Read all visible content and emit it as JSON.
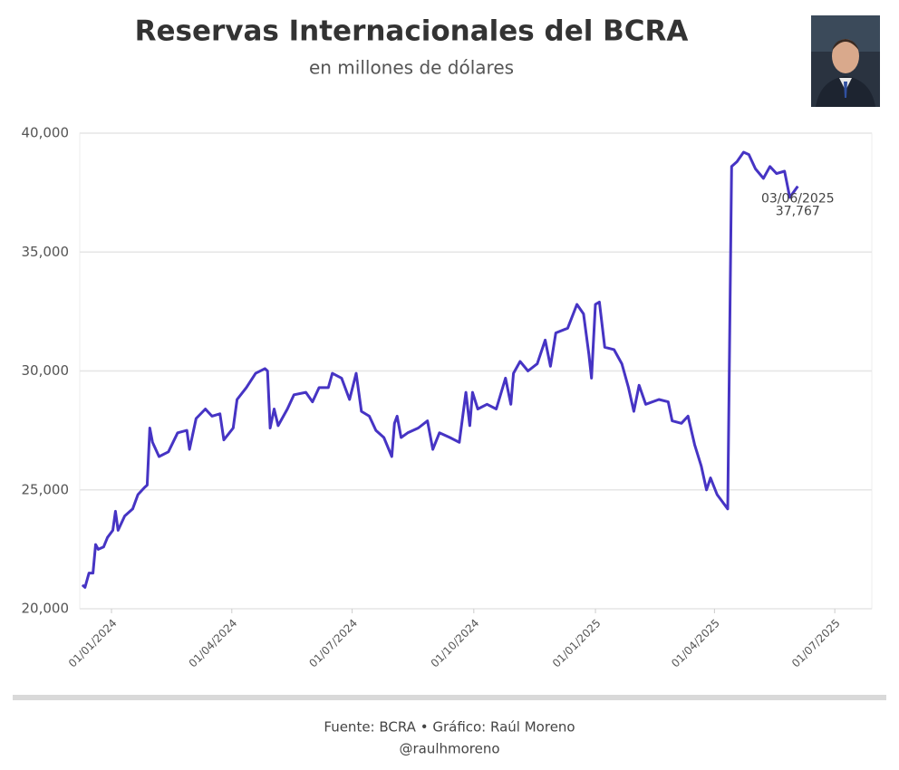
{
  "chart_data": {
    "type": "line",
    "title": "Reservas Internacionales del BCRA",
    "subtitle": "en millones de dólares",
    "source": "Fuente: BCRA • Gráfico: Raúl Moreno",
    "handle": "@raulhmoreno",
    "x": [
      "2023-12-10",
      "2023-12-12",
      "2023-12-15",
      "2023-12-18",
      "2023-12-20",
      "2023-12-22",
      "2023-12-26",
      "2023-12-29",
      "2024-01-02",
      "2024-01-04",
      "2024-01-06",
      "2024-01-11",
      "2024-01-17",
      "2024-01-21",
      "2024-01-26",
      "2024-01-28",
      "2024-01-30",
      "2024-02-01",
      "2024-02-06",
      "2024-02-13",
      "2024-02-20",
      "2024-02-27",
      "2024-02-29",
      "2024-03-05",
      "2024-03-12",
      "2024-03-17",
      "2024-03-23",
      "2024-03-26",
      "2024-04-02",
      "2024-04-05",
      "2024-04-12",
      "2024-04-19",
      "2024-04-26",
      "2024-04-28",
      "2024-04-30",
      "2024-05-03",
      "2024-05-06",
      "2024-05-13",
      "2024-05-18",
      "2024-05-27",
      "2024-06-01",
      "2024-06-06",
      "2024-06-13",
      "2024-06-16",
      "2024-06-23",
      "2024-06-29",
      "2024-07-04",
      "2024-07-08",
      "2024-07-14",
      "2024-07-19",
      "2024-07-25",
      "2024-07-31",
      "2024-08-02",
      "2024-08-04",
      "2024-08-07",
      "2024-08-12",
      "2024-08-20",
      "2024-08-27",
      "2024-08-31",
      "2024-09-05",
      "2024-09-13",
      "2024-09-20",
      "2024-09-25",
      "2024-09-28",
      "2024-09-30",
      "2024-10-04",
      "2024-10-11",
      "2024-10-18",
      "2024-10-25",
      "2024-10-29",
      "2024-10-31",
      "2024-11-05",
      "2024-11-11",
      "2024-11-18",
      "2024-11-24",
      "2024-11-28",
      "2024-12-02",
      "2024-12-11",
      "2024-12-18",
      "2024-12-23",
      "2024-12-27",
      "2024-12-29",
      "2025-01-01",
      "2025-01-04",
      "2025-01-08",
      "2025-01-15",
      "2025-01-21",
      "2025-01-26",
      "2025-01-30",
      "2025-02-03",
      "2025-02-08",
      "2025-02-18",
      "2025-02-25",
      "2025-02-28",
      "2025-03-07",
      "2025-03-12",
      "2025-03-17",
      "2025-03-22",
      "2025-03-26",
      "2025-03-29",
      "2025-04-03",
      "2025-04-11",
      "2025-04-14",
      "2025-04-18",
      "2025-04-23",
      "2025-04-27",
      "2025-05-02",
      "2025-05-08",
      "2025-05-13",
      "2025-05-18",
      "2025-05-24",
      "2025-05-28",
      "2025-06-03"
    ],
    "series": [
      {
        "name": "Reservas",
        "color": "#4634c4",
        "values": [
          21000,
          20900,
          21500,
          21500,
          22700,
          22500,
          22600,
          23000,
          23300,
          24100,
          23300,
          23900,
          24200,
          24800,
          25100,
          25200,
          27600,
          27000,
          26400,
          26600,
          27400,
          27500,
          26700,
          28000,
          28400,
          28100,
          28200,
          27100,
          27600,
          28800,
          29300,
          29900,
          30100,
          30000,
          27600,
          28400,
          27700,
          28400,
          29000,
          29100,
          28700,
          29300,
          29300,
          29900,
          29700,
          28800,
          29900,
          28300,
          28100,
          27500,
          27200,
          26400,
          27800,
          28100,
          27200,
          27400,
          27600,
          27900,
          26700,
          27400,
          27200,
          27000,
          29100,
          27700,
          29100,
          28400,
          28600,
          28400,
          29700,
          28600,
          29900,
          30400,
          30000,
          30300,
          31300,
          30200,
          31600,
          31800,
          32800,
          32400,
          30700,
          29700,
          32800,
          32900,
          31000,
          30900,
          30300,
          29300,
          28300,
          29400,
          28600,
          28800,
          28700,
          27900,
          27800,
          28100,
          26900,
          26000,
          25000,
          25500,
          24800,
          24200,
          38600,
          38800,
          39200,
          39100,
          38500,
          38100,
          38600,
          38300,
          38400,
          37300,
          37767
        ]
      }
    ],
    "annotation": {
      "text": "03/06/2025",
      "value": 37767,
      "value_label": "37,767"
    },
    "xlim": [
      "2023-12-08",
      "2025-07-29"
    ],
    "xticks": [
      {
        "value": "2024-01-01",
        "label": "01/01/2024"
      },
      {
        "value": "2024-04-01",
        "label": "01/04/2024"
      },
      {
        "value": "2024-07-01",
        "label": "01/07/2024"
      },
      {
        "value": "2024-10-01",
        "label": "01/10/2024"
      },
      {
        "value": "2025-01-01",
        "label": "01/01/2025"
      },
      {
        "value": "2025-04-01",
        "label": "01/04/2025"
      },
      {
        "value": "2025-07-01",
        "label": "01/07/2025"
      }
    ],
    "ylim": [
      20000,
      40000
    ],
    "yticks": [
      {
        "value": 20000,
        "label": "20,000"
      },
      {
        "value": 25000,
        "label": "25,000"
      },
      {
        "value": 30000,
        "label": "30,000"
      },
      {
        "value": 35000,
        "label": "35,000"
      },
      {
        "value": 40000,
        "label": "40,000"
      }
    ],
    "grid": true
  }
}
